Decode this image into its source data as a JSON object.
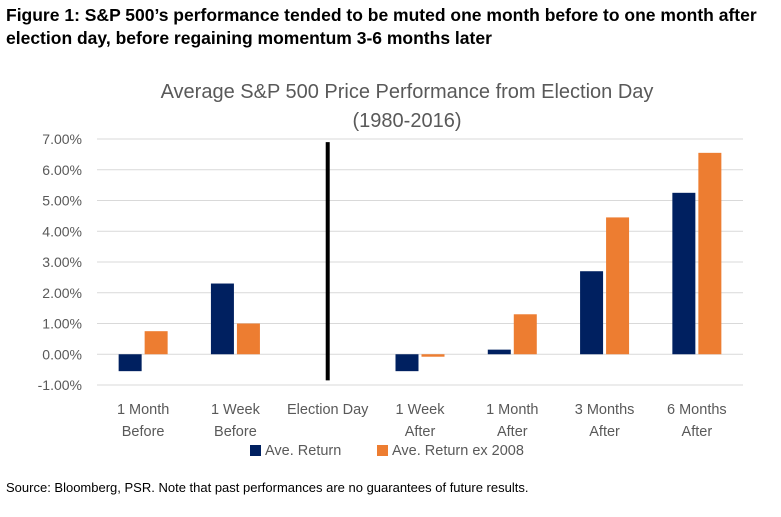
{
  "figure": {
    "caption": "Figure 1: S&P 500’s performance tended to be muted one month before to one month after election day, before regaining momentum 3-6 months later",
    "source": "Source: Bloomberg, PSR. Note that past performances are no guarantees of future results."
  },
  "chart_data": {
    "type": "bar",
    "title": "Average S&P 500 Price Performance from Election Day",
    "subtitle": "(1980-2016)",
    "categories": [
      [
        "1 Month",
        "Before"
      ],
      [
        "1 Week",
        "Before"
      ],
      [
        "Election Day"
      ],
      [
        "1 Week",
        "After"
      ],
      [
        "1 Month",
        "After"
      ],
      [
        "3 Months",
        "After"
      ],
      [
        "6 Months",
        "After"
      ]
    ],
    "series": [
      {
        "name": "Ave. Return",
        "color": "#002060",
        "values": [
          -0.55,
          2.3,
          null,
          -0.55,
          0.15,
          2.7,
          5.25
        ]
      },
      {
        "name": "Ave. Return ex 2008",
        "color": "#ED7D31",
        "values": [
          0.75,
          1.0,
          null,
          -0.08,
          1.3,
          4.45,
          6.55
        ]
      }
    ],
    "yticks": [
      "-1.00%",
      "0.00%",
      "1.00%",
      "2.00%",
      "3.00%",
      "4.00%",
      "5.00%",
      "6.00%",
      "7.00%"
    ],
    "ylim": [
      -1,
      7
    ],
    "grid": true,
    "legend_position": "bottom",
    "election_day_marker": {
      "category_index": 2,
      "from": -0.85,
      "to": 6.9,
      "color": "#000000"
    }
  }
}
